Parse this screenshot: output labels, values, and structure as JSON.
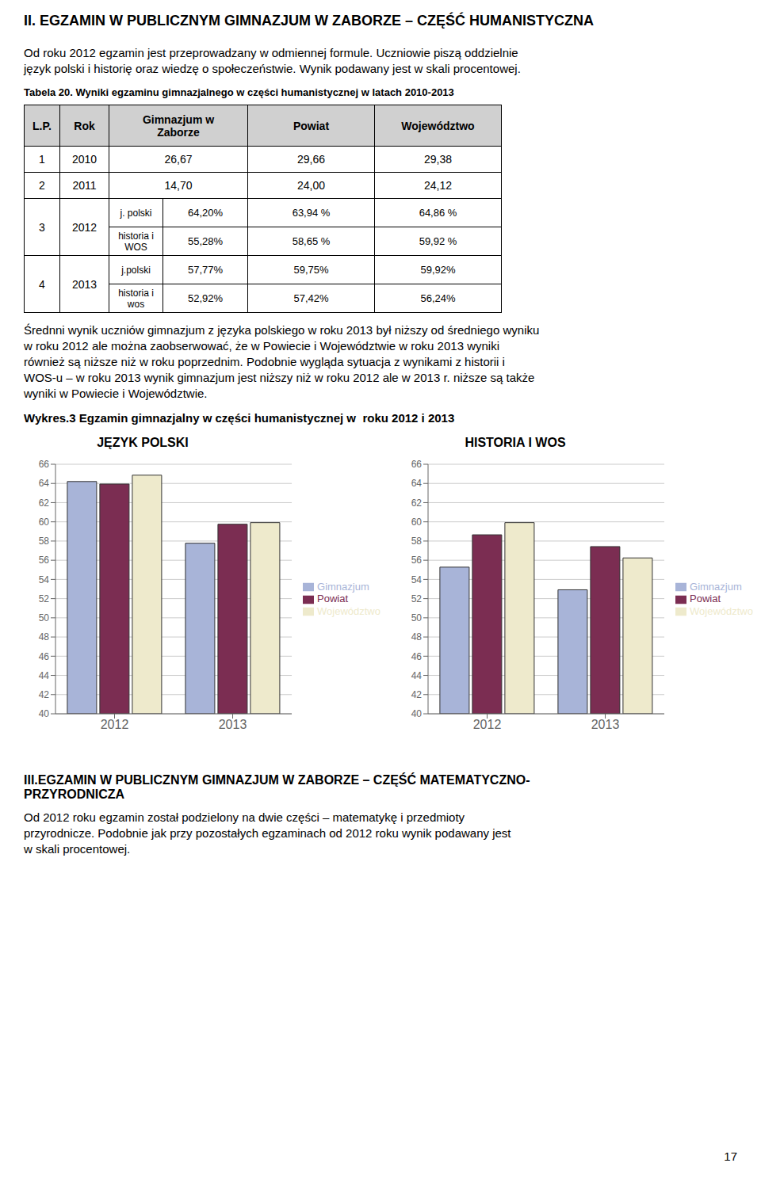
{
  "title": "II. EGZAMIN W PUBLICZNYM GIMNAZJUM W ZABORZE – CZĘŚĆ HUMANISTYCZNA",
  "paragraph1": [
    "Od roku 2012 egzamin jest przeprowadzany w odmiennej formule. Uczniowie piszą oddzielnie",
    "język polski i historię oraz wiedzę o społeczeństwie. Wynik podawany jest w skali procentowej."
  ],
  "table": {
    "caption": "Tabela 20. Wyniki egzaminu gimnazjalnego w części humanistycznej w latach 2010-2013",
    "headers": [
      "L.P.",
      "Rok",
      "Gimnazjum w\nZaborze",
      "Powiat",
      "Województwo"
    ],
    "rows": [
      {
        "lp": "1",
        "year": "2010",
        "subrows": [
          {
            "cells": [
              "26,67",
              "29,66",
              "29,38"
            ]
          }
        ]
      },
      {
        "lp": "2",
        "year": "2011",
        "subrows": [
          {
            "cells": [
              "14,70",
              "24,00",
              "24,12"
            ]
          }
        ]
      },
      {
        "lp": "3",
        "year": "2012",
        "subrows": [
          {
            "label": "j. polski",
            "cells": [
              "64,20%",
              "63,94 %",
              "64,86 %"
            ]
          },
          {
            "label": "historia i\nWOS",
            "cells": [
              "55,28%",
              "58,65 %",
              "59,92 %"
            ]
          }
        ]
      },
      {
        "lp": "4",
        "year": "2013",
        "subrows": [
          {
            "label": "j.polski",
            "cells": [
              "57,77%",
              "59,75%",
              "59,92%"
            ]
          },
          {
            "label": "historia i\nwos",
            "cells": [
              "52,92%",
              "57,42%",
              "56,24%"
            ]
          }
        ]
      }
    ]
  },
  "paragraph2": [
    "Średnni wynik uczniów gimnazjum z języka polskiego w roku 2013 był niższy od średniego wyniku",
    "w roku 2012 ale można zaobserwować, że w Powiecie i Województwie w roku 2013 wyniki",
    "również są niższe niż w roku poprzednim. Podobnie wygląda sytuacja z wynikami z historii i",
    "WOS-u – w roku 2013 wynik gimnazjum jest niższy niż w roku 2012 ale w 2013 r. niższe są także",
    "wyniki w Powiecie i Województwie."
  ],
  "charts_title": "Wykres.3 Egzamin gimnazjalny w części humanistycznej w  roku 2012 i 2013",
  "chart_data": [
    {
      "type": "bar",
      "title": "JĘZYK POLSKI",
      "categories": [
        "2012",
        "2013"
      ],
      "series": [
        {
          "name": "Gimnazjum",
          "color": "#a8b4d8",
          "values": [
            64.2,
            57.77
          ]
        },
        {
          "name": "Powiat",
          "color": "#7b2d52",
          "values": [
            63.94,
            59.75
          ]
        },
        {
          "name": "Województwo",
          "color": "#eeeacc",
          "values": [
            64.86,
            59.92
          ]
        }
      ],
      "ylim": [
        40,
        66
      ],
      "yticks": [
        40,
        42,
        44,
        46,
        48,
        50,
        52,
        54,
        56,
        58,
        60,
        62,
        64,
        66
      ],
      "grid": true,
      "legend": "right"
    },
    {
      "type": "bar",
      "title": "HISTORIA I WOS",
      "categories": [
        "2012",
        "2013"
      ],
      "series": [
        {
          "name": "Gimnazjum",
          "color": "#a8b4d8",
          "values": [
            55.28,
            52.92
          ]
        },
        {
          "name": "Powiat",
          "color": "#7b2d52",
          "values": [
            58.65,
            57.42
          ]
        },
        {
          "name": "Województwo",
          "color": "#eeeacc",
          "values": [
            59.92,
            56.24
          ]
        }
      ],
      "ylim": [
        40,
        66
      ],
      "yticks": [
        40,
        42,
        44,
        46,
        48,
        50,
        52,
        54,
        56,
        58,
        60,
        62,
        64,
        66
      ],
      "grid": true,
      "legend": "right"
    }
  ],
  "section_title": [
    "III.EGZAMIN W PUBLICZNYM GIMNAZJUM W ZABORZE – CZĘŚĆ MATEMATYCZNO-",
    "PRZYRODNICZA"
  ],
  "paragraph3": [
    "Od 2012 roku egzamin został podzielony na dwie części – matematykę i przedmioty",
    "przyrodnicze. Podobnie jak przy pozostałych egzaminach od 2012 roku wynik podawany jest",
    "w skali procentowej."
  ],
  "page_number": "17"
}
